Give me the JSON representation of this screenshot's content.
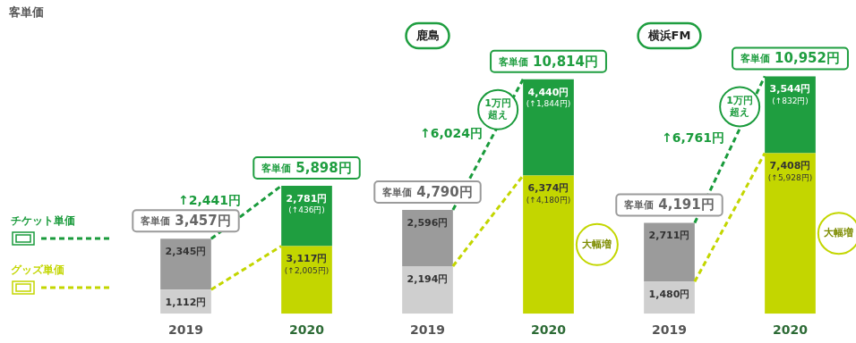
{
  "chart_data": {
    "type": "bar",
    "title": "客単価",
    "stacked": true,
    "data_labels": true,
    "grid": false,
    "tick_labels": "x",
    "legend": "left",
    "categories": [
      "2019",
      "2020",
      "2019",
      "2020",
      "2019",
      "2020"
    ],
    "group_labels": [
      null,
      "鹿島",
      "横浜FM"
    ],
    "series": [
      {
        "name": "チケット単価",
        "color": "#1a9b3c",
        "colors": [
          "#9b9b9b",
          "#1f9e40",
          "#9b9b9b",
          "#1f9e40",
          "#9b9b9b",
          "#1f9e40"
        ],
        "values": [
          2345,
          2781,
          2596,
          4440,
          2711,
          3544
        ],
        "value_labels": [
          "2,345円",
          "2,781円",
          "2,596円",
          "4,440円",
          "2,711円",
          "3,544円"
        ],
        "changes": [
          null,
          436,
          null,
          1844,
          null,
          832
        ],
        "change_labels": [
          null,
          "(↑436円)",
          null,
          "(↑1,844円)",
          null,
          "(↑832円)"
        ]
      },
      {
        "name": "グッズ単価",
        "color": "#c3d600",
        "colors": [
          "#cfcfcf",
          "#c3d600",
          "#cfcfcf",
          "#c3d600",
          "#cfcfcf",
          "#c3d600"
        ],
        "values": [
          1112,
          3117,
          2194,
          6374,
          1480,
          7408
        ],
        "value_labels": [
          "1,112円",
          "3,117円",
          "2,194円",
          "6,374円",
          "1,480円",
          "7,408円"
        ],
        "changes": [
          null,
          2005,
          null,
          4180,
          null,
          5928
        ],
        "change_labels": [
          null,
          "(↑2,005円)",
          null,
          "(↑4,180円)",
          null,
          "(↑5,928円)"
        ]
      }
    ],
    "total_prefix": "客単価",
    "totals": [
      3457,
      5898,
      4790,
      10814,
      4191,
      10952
    ],
    "total_labels": [
      "3,457円",
      "5,898円",
      "4,790円",
      "10,814円",
      "4,191円",
      "10,952円"
    ],
    "growth": [
      2441,
      6024,
      6761
    ],
    "growth_labels": [
      "↑2,441円",
      "↑6,024円",
      "↑6,761円"
    ],
    "total_notes": [
      null,
      null,
      null,
      "1万円\n超え",
      null,
      "1万円\n超え"
    ],
    "goods_notes": [
      null,
      null,
      null,
      "大幅増",
      null,
      "大幅増"
    ]
  }
}
